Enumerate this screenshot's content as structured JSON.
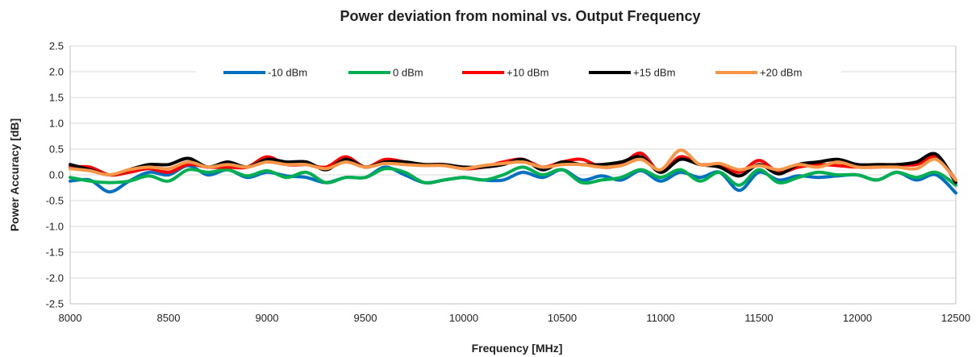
{
  "chart_data": {
    "type": "line",
    "title": "Power deviation from nominal vs. Output Frequency",
    "xlabel": "Frequency [MHz]",
    "ylabel": "Power Accuracy [dB]",
    "xlim": [
      8000,
      12500
    ],
    "ylim": [
      -2.5,
      2.5
    ],
    "xticks": [
      8000,
      8500,
      9000,
      9500,
      10000,
      10500,
      11000,
      11500,
      12000,
      12500
    ],
    "yticks": [
      -2.5,
      -2.0,
      -1.5,
      -1.0,
      -0.5,
      0.0,
      0.5,
      1.0,
      1.5,
      2.0,
      2.5
    ],
    "ytick_labels": [
      "-2.5",
      "-2.0",
      "-1.5",
      "-1.0",
      "-0.5",
      "0.0",
      "0.5",
      "1.0",
      "1.5",
      "2.0",
      "2.5"
    ],
    "grid": true,
    "legend_position": "top",
    "x": [
      8000,
      8100,
      8200,
      8300,
      8400,
      8500,
      8600,
      8700,
      8800,
      8900,
      9000,
      9100,
      9200,
      9300,
      9400,
      9500,
      9600,
      9700,
      9800,
      9900,
      10000,
      10100,
      10200,
      10300,
      10400,
      10500,
      10600,
      10700,
      10800,
      10900,
      11000,
      11100,
      11200,
      11300,
      11400,
      11500,
      11600,
      11700,
      11800,
      11900,
      12000,
      12100,
      12200,
      12300,
      12400,
      12500
    ],
    "series": [
      {
        "name": "-10 dBm",
        "color": "#0070C0",
        "values": [
          -0.12,
          -0.1,
          -0.33,
          -0.12,
          0.05,
          0.0,
          0.18,
          0.0,
          0.1,
          -0.05,
          0.05,
          -0.02,
          -0.05,
          -0.15,
          -0.05,
          -0.05,
          0.15,
          0.0,
          -0.15,
          -0.1,
          -0.05,
          -0.1,
          -0.1,
          0.05,
          -0.05,
          0.1,
          -0.1,
          -0.02,
          -0.1,
          0.08,
          -0.12,
          0.05,
          -0.05,
          0.05,
          -0.3,
          0.05,
          -0.1,
          -0.02,
          -0.05,
          -0.02,
          0.0,
          -0.1,
          0.05,
          -0.1,
          0.0,
          -0.35
        ]
      },
      {
        "name": "0 dBm",
        "color": "#00B050",
        "values": [
          -0.05,
          -0.12,
          -0.15,
          -0.12,
          -0.02,
          -0.12,
          0.1,
          0.05,
          0.1,
          -0.02,
          0.08,
          -0.05,
          0.05,
          -0.15,
          -0.05,
          -0.05,
          0.12,
          0.05,
          -0.15,
          -0.1,
          -0.05,
          -0.1,
          0.0,
          0.15,
          0.0,
          0.1,
          -0.15,
          -0.1,
          -0.05,
          0.1,
          -0.05,
          0.1,
          -0.12,
          0.05,
          -0.2,
          0.1,
          -0.15,
          -0.05,
          0.05,
          0.0,
          0.0,
          -0.1,
          0.05,
          -0.05,
          0.05,
          -0.2
        ]
      },
      {
        "name": "+10 dBm",
        "color": "#FF0000",
        "values": [
          0.15,
          0.15,
          0.0,
          0.05,
          0.12,
          0.05,
          0.2,
          0.15,
          0.15,
          0.15,
          0.35,
          0.2,
          0.2,
          0.15,
          0.35,
          0.15,
          0.3,
          0.25,
          0.2,
          0.2,
          0.12,
          0.15,
          0.25,
          0.3,
          0.15,
          0.25,
          0.3,
          0.15,
          0.2,
          0.42,
          0.05,
          0.35,
          0.2,
          0.2,
          0.05,
          0.28,
          0.05,
          0.15,
          0.2,
          0.18,
          0.15,
          0.15,
          0.2,
          0.2,
          0.35,
          -0.1
        ]
      },
      {
        "name": "+15 dBm",
        "color": "#000000",
        "values": [
          0.2,
          0.1,
          0.0,
          0.1,
          0.2,
          0.2,
          0.32,
          0.15,
          0.25,
          0.15,
          0.3,
          0.25,
          0.25,
          0.1,
          0.3,
          0.15,
          0.25,
          0.25,
          0.2,
          0.2,
          0.15,
          0.15,
          0.2,
          0.3,
          0.1,
          0.25,
          0.2,
          0.2,
          0.25,
          0.35,
          0.05,
          0.3,
          0.2,
          0.15,
          -0.02,
          0.2,
          0.02,
          0.2,
          0.25,
          0.3,
          0.2,
          0.2,
          0.2,
          0.25,
          0.4,
          -0.15
        ]
      },
      {
        "name": "+20 dBm",
        "color": "#F79646",
        "values": [
          0.12,
          0.08,
          0.0,
          0.1,
          0.15,
          0.12,
          0.25,
          0.15,
          0.2,
          0.15,
          0.25,
          0.2,
          0.2,
          0.12,
          0.25,
          0.15,
          0.22,
          0.2,
          0.18,
          0.18,
          0.12,
          0.18,
          0.22,
          0.25,
          0.15,
          0.2,
          0.2,
          0.15,
          0.18,
          0.3,
          0.1,
          0.48,
          0.2,
          0.22,
          0.1,
          0.18,
          0.1,
          0.2,
          0.15,
          0.25,
          0.15,
          0.15,
          0.15,
          0.12,
          0.3,
          -0.1
        ]
      }
    ]
  }
}
